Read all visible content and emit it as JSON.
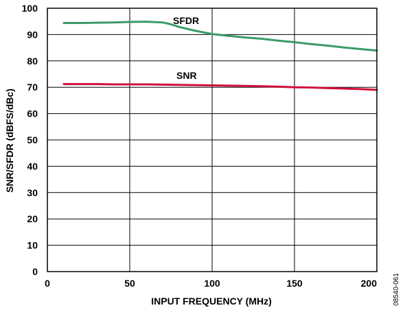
{
  "chart_data": {
    "type": "line",
    "title": "",
    "xlabel": "INPUT FREQUENCY (MHz)",
    "ylabel": "SNR/SFDR (dBFS/dBc)",
    "xlim": [
      0,
      200
    ],
    "ylim": [
      0,
      100
    ],
    "x_ticks": [
      "0",
      "50",
      "100",
      "150",
      "200"
    ],
    "y_ticks": [
      "0",
      "10",
      "20",
      "30",
      "40",
      "50",
      "60",
      "70",
      "80",
      "90",
      "100"
    ],
    "grid": true,
    "series": [
      {
        "name": "SFDR",
        "color": "#3a9a68",
        "x": [
          10,
          20,
          30,
          40,
          50,
          60,
          70,
          75,
          80,
          90,
          100,
          110,
          120,
          130,
          140,
          150,
          160,
          170,
          180,
          190,
          200
        ],
        "y": [
          94.4,
          94.4,
          94.5,
          94.6,
          94.8,
          94.9,
          94.6,
          93.9,
          92.9,
          91.4,
          90.2,
          89.5,
          88.9,
          88.4,
          87.7,
          87.1,
          86.4,
          85.8,
          85.1,
          84.5,
          83.9
        ]
      },
      {
        "name": "SNR",
        "color": "#d0103a",
        "x": [
          10,
          20,
          30,
          40,
          50,
          60,
          70,
          80,
          90,
          100,
          110,
          120,
          130,
          140,
          150,
          160,
          170,
          180,
          190,
          200
        ],
        "y": [
          71.2,
          71.2,
          71.2,
          71.1,
          71.1,
          71.1,
          71.0,
          70.9,
          70.8,
          70.7,
          70.6,
          70.5,
          70.4,
          70.2,
          70.0,
          69.9,
          69.7,
          69.5,
          69.3,
          69.0
        ]
      }
    ]
  },
  "figure_id": "08540-061"
}
